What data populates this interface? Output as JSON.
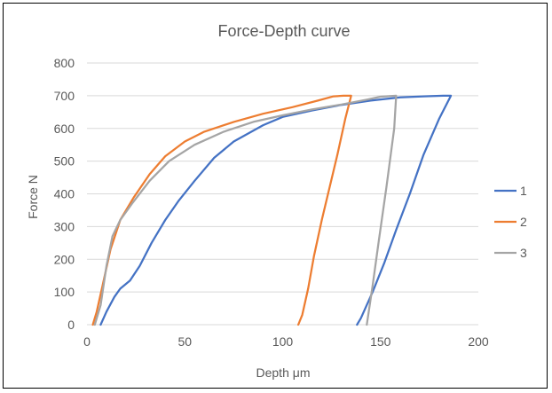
{
  "chart_data": {
    "type": "line",
    "title": "Force-Depth curve",
    "xlabel": "Depth μm",
    "ylabel": "Force N",
    "xlim": [
      0,
      200
    ],
    "ylim": [
      0,
      800
    ],
    "xticks": [
      0,
      50,
      100,
      150,
      200
    ],
    "yticks": [
      0,
      100,
      200,
      300,
      400,
      500,
      600,
      700,
      800
    ],
    "grid": "horizontal",
    "legend_position": "right",
    "series": [
      {
        "name": "1",
        "color": "#4472c4",
        "points": [
          [
            7,
            0
          ],
          [
            10,
            40
          ],
          [
            14,
            85
          ],
          [
            17,
            110
          ],
          [
            22,
            135
          ],
          [
            27,
            180
          ],
          [
            33,
            250
          ],
          [
            40,
            320
          ],
          [
            47,
            380
          ],
          [
            55,
            440
          ],
          [
            65,
            510
          ],
          [
            75,
            560
          ],
          [
            90,
            610
          ],
          [
            100,
            635
          ],
          [
            115,
            655
          ],
          [
            130,
            672
          ],
          [
            145,
            685
          ],
          [
            160,
            695
          ],
          [
            172,
            698
          ],
          [
            182,
            700
          ],
          [
            186,
            700
          ],
          [
            180,
            630
          ],
          [
            172,
            520
          ],
          [
            165,
            400
          ],
          [
            158,
            290
          ],
          [
            152,
            190
          ],
          [
            146,
            100
          ],
          [
            140,
            20
          ],
          [
            138,
            0
          ]
        ]
      },
      {
        "name": "2",
        "color": "#ed7d31",
        "points": [
          [
            3,
            0
          ],
          [
            5,
            40
          ],
          [
            8,
            120
          ],
          [
            12,
            230
          ],
          [
            17,
            320
          ],
          [
            24,
            390
          ],
          [
            32,
            460
          ],
          [
            40,
            515
          ],
          [
            50,
            560
          ],
          [
            60,
            590
          ],
          [
            75,
            620
          ],
          [
            90,
            645
          ],
          [
            105,
            665
          ],
          [
            118,
            685
          ],
          [
            126,
            698
          ],
          [
            131,
            700
          ],
          [
            135,
            700
          ],
          [
            132,
            630
          ],
          [
            128,
            520
          ],
          [
            124,
            420
          ],
          [
            120,
            320
          ],
          [
            116,
            210
          ],
          [
            113,
            110
          ],
          [
            110,
            30
          ],
          [
            108,
            0
          ]
        ]
      },
      {
        "name": "3",
        "color": "#a5a5a5",
        "points": [
          [
            4,
            0
          ],
          [
            7,
            60
          ],
          [
            10,
            180
          ],
          [
            13,
            270
          ],
          [
            17,
            320
          ],
          [
            23,
            370
          ],
          [
            32,
            440
          ],
          [
            42,
            500
          ],
          [
            55,
            550
          ],
          [
            70,
            590
          ],
          [
            85,
            620
          ],
          [
            100,
            640
          ],
          [
            115,
            658
          ],
          [
            130,
            673
          ],
          [
            143,
            688
          ],
          [
            150,
            697
          ],
          [
            158,
            700
          ],
          [
            157,
            600
          ],
          [
            153,
            420
          ],
          [
            149,
            250
          ],
          [
            146,
            120
          ],
          [
            144,
            40
          ],
          [
            143,
            0
          ]
        ]
      }
    ]
  }
}
